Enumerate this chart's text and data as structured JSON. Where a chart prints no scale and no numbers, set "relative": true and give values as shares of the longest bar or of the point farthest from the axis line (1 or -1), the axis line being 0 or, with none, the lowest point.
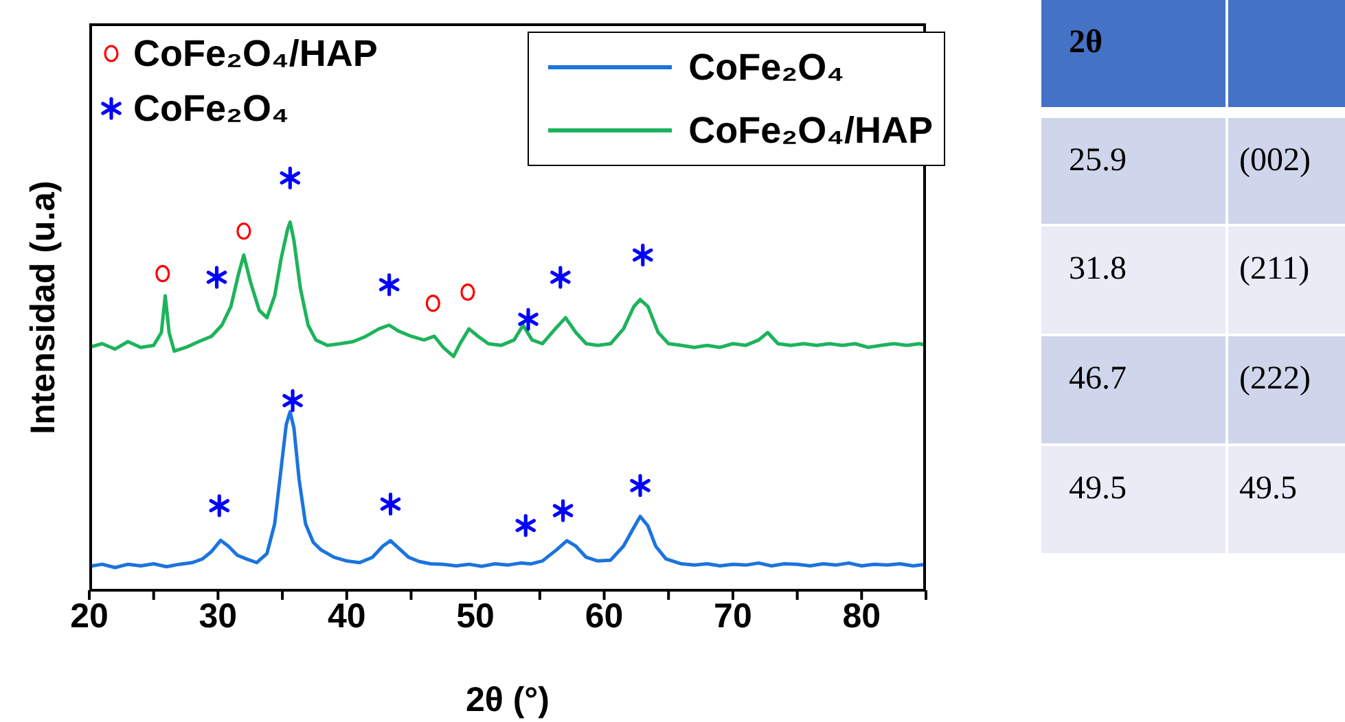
{
  "chart_data": [
    {
      "type": "line",
      "relative": true,
      "xlabel": "2θ (°)",
      "ylabel": "Intensidad (u.a)",
      "xlim": [
        20,
        85
      ],
      "xticks": [
        20,
        {
          "value": 25,
          "label": null
        },
        30,
        {
          "value": 35,
          "label": null
        },
        40,
        {
          "value": 45,
          "label": null
        },
        50,
        {
          "value": 55,
          "label": null
        },
        60,
        {
          "value": 65,
          "label": null
        },
        70,
        {
          "value": 75,
          "label": null
        },
        80,
        {
          "value": 85,
          "label": null
        }
      ],
      "grid": false,
      "legend": "top right",
      "tick_labels": "x",
      "line_style": "solid",
      "marker": "none",
      "series": [
        {
          "name": "CoFe₂O₄",
          "color": "#1c74dc",
          "x": [
            20,
            21,
            22,
            23,
            24,
            25,
            26,
            27,
            28,
            28.8,
            29.5,
            30.2,
            30.8,
            31.5,
            32.2,
            33,
            33.8,
            34.4,
            34.9,
            35.3,
            35.6,
            35.9,
            36.3,
            36.8,
            37.4,
            38,
            39,
            40,
            41,
            42,
            42.8,
            43.4,
            44,
            44.8,
            45.6,
            46.5,
            47.5,
            48.5,
            49.5,
            50.5,
            51.5,
            52.5,
            53.5,
            54.3,
            55.2,
            56.3,
            57.1,
            57.8,
            58.6,
            59.5,
            60.5,
            61.5,
            62.3,
            62.8,
            63.4,
            64,
            64.8,
            66,
            67,
            68,
            69,
            70,
            71,
            72,
            73,
            74,
            75,
            76,
            77,
            78,
            79,
            80,
            81,
            82,
            83,
            84,
            85
          ],
          "values": [
            0.058,
            0.063,
            0.055,
            0.063,
            0.059,
            0.064,
            0.057,
            0.063,
            0.067,
            0.076,
            0.094,
            0.121,
            0.107,
            0.085,
            0.076,
            0.067,
            0.089,
            0.161,
            0.295,
            0.402,
            0.433,
            0.393,
            0.268,
            0.161,
            0.116,
            0.098,
            0.08,
            0.071,
            0.067,
            0.08,
            0.107,
            0.12,
            0.103,
            0.08,
            0.07,
            0.064,
            0.063,
            0.059,
            0.063,
            0.058,
            0.064,
            0.061,
            0.066,
            0.064,
            0.071,
            0.098,
            0.12,
            0.107,
            0.08,
            0.071,
            0.073,
            0.107,
            0.152,
            0.179,
            0.156,
            0.107,
            0.076,
            0.064,
            0.061,
            0.064,
            0.059,
            0.063,
            0.061,
            0.066,
            0.059,
            0.064,
            0.063,
            0.059,
            0.064,
            0.061,
            0.066,
            0.059,
            0.063,
            0.061,
            0.064,
            0.059,
            0.063
          ]
        },
        {
          "name": "CoFe₂O₄/HAP",
          "color": "#1db35c",
          "x": [
            20,
            21,
            22,
            23,
            24,
            25,
            25.6,
            25.9,
            26.2,
            26.6,
            27.5,
            28.5,
            29.5,
            30.3,
            31,
            31.6,
            32,
            32.5,
            33.2,
            33.8,
            34.4,
            34.9,
            35.4,
            35.6,
            35.9,
            36.4,
            37,
            37.6,
            38.5,
            39.5,
            40.5,
            41.5,
            42.5,
            43.3,
            44,
            45,
            46,
            46.8,
            47.5,
            48.3,
            48.8,
            49.5,
            50.2,
            51,
            52,
            53,
            53.7,
            54.4,
            55.2,
            56.2,
            57,
            57.8,
            58.6,
            59.5,
            60.5,
            61.5,
            62.3,
            62.8,
            63.4,
            64.2,
            65,
            66,
            67,
            68,
            69,
            70,
            71,
            72,
            72.7,
            73.5,
            74.5,
            75.5,
            76.5,
            77.5,
            78.5,
            79.5,
            80.5,
            81.5,
            82.5,
            83.5,
            84.5,
            85
          ],
          "values": [
            0.589,
            0.598,
            0.585,
            0.603,
            0.589,
            0.594,
            0.625,
            0.714,
            0.625,
            0.58,
            0.589,
            0.603,
            0.616,
            0.643,
            0.688,
            0.768,
            0.813,
            0.75,
            0.679,
            0.661,
            0.714,
            0.804,
            0.875,
            0.893,
            0.848,
            0.732,
            0.643,
            0.607,
            0.594,
            0.598,
            0.603,
            0.616,
            0.634,
            0.643,
            0.629,
            0.616,
            0.607,
            0.616,
            0.589,
            0.567,
            0.598,
            0.634,
            0.616,
            0.598,
            0.594,
            0.607,
            0.643,
            0.607,
            0.598,
            0.634,
            0.661,
            0.625,
            0.598,
            0.594,
            0.598,
            0.634,
            0.688,
            0.705,
            0.688,
            0.625,
            0.598,
            0.594,
            0.589,
            0.594,
            0.589,
            0.598,
            0.594,
            0.607,
            0.625,
            0.598,
            0.594,
            0.598,
            0.594,
            0.598,
            0.594,
            0.598,
            0.589,
            0.594,
            0.598,
            0.594,
            0.598,
            0.594
          ]
        },
        {
          "name": "CoFe₂O₄/HAP",
          "type": "scatter",
          "marker": "circle",
          "color": "#ff0000",
          "x": [
            25.7,
            32.0,
            46.7,
            49.4
          ],
          "values": [
            0.768,
            0.871,
            0.696,
            0.723
          ]
        },
        {
          "name": "CoFe₂O₄",
          "type": "scatter",
          "marker": "cross",
          "color": "#0000ff",
          "x": [
            29.9,
            35.6,
            43.3,
            54.1,
            56.6,
            63.0,
            30.1,
            35.8,
            43.4,
            53.9,
            56.8,
            62.8
          ],
          "values": [
            0.759,
            1,
            0.741,
            0.657,
            0.759,
            0.813,
            0.205,
            0.46,
            0.209,
            0.157,
            0.193,
            0.254
          ]
        }
      ]
    },
    {
      "type": "other",
      "annotations": [
        "2θ",
        "25.9",
        "(002)",
        "31.8",
        "(211)",
        "46.7",
        "(222)",
        "49.5",
        "49.5"
      ]
    }
  ]
}
